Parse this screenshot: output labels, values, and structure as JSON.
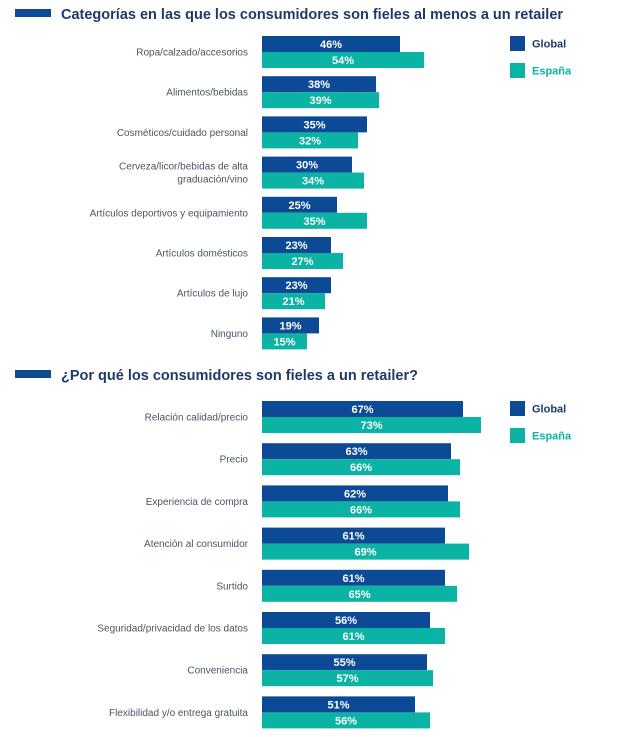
{
  "colors": {
    "global": "#0d4a96",
    "espana": "#0ab3a3",
    "title": "#1e3a68",
    "label": "#4a5566"
  },
  "chart_data": [
    {
      "type": "bar",
      "title": "Categorías en las que los consumidores son fieles al menos a un retailer",
      "categories": [
        [
          "Ropa/calzado/accesorios"
        ],
        [
          "Alimentos/bebidas"
        ],
        [
          "Cosméticos/cuidado personal"
        ],
        [
          "Cerveza/licor/bebidas de alta",
          "graduación/vino"
        ],
        [
          "Artículos deportivos y equipamiento"
        ],
        [
          "Artículos domésticos"
        ],
        [
          "Artículos de lujo"
        ],
        [
          "Ninguno"
        ]
      ],
      "series": [
        {
          "name": "Global",
          "values": [
            46,
            38,
            35,
            30,
            25,
            23,
            23,
            19
          ],
          "labels": [
            "46%",
            "38%",
            "35%",
            "30%",
            "25%",
            "23%",
            "23%",
            "19%"
          ]
        },
        {
          "name": "España",
          "values": [
            54,
            39,
            32,
            34,
            35,
            27,
            21,
            15
          ],
          "labels": [
            "54%",
            "39%",
            "32%",
            "34%",
            "35%",
            "27%",
            "21%",
            "15%"
          ]
        }
      ],
      "legend": "top-right",
      "grid": false
    },
    {
      "type": "bar",
      "title": "¿Por qué los consumidores son fieles a un retailer?",
      "categories": [
        [
          "Relación calidad/precio"
        ],
        [
          "Precio"
        ],
        [
          "Experiencia de compra"
        ],
        [
          "Atención al consumidor"
        ],
        [
          "Surtido"
        ],
        [
          "Seguridad/privacidad de los datos"
        ],
        [
          "Conveniencia"
        ],
        [
          "Flexibilidad y/o entrega gratuita"
        ]
      ],
      "series": [
        {
          "name": "Global",
          "values": [
            67,
            63,
            62,
            61,
            61,
            56,
            55,
            51
          ],
          "labels": [
            "67%",
            "63%",
            "62%",
            "61%",
            "61%",
            "56%",
            "55%",
            "51%"
          ]
        },
        {
          "name": "España",
          "values": [
            73,
            66,
            66,
            69,
            65,
            61,
            57,
            56
          ],
          "labels": [
            "73%",
            "66%",
            "66%",
            "69%",
            "65%",
            "61%",
            "57%",
            "56%"
          ]
        }
      ],
      "legend": "top-right",
      "grid": false
    }
  ]
}
